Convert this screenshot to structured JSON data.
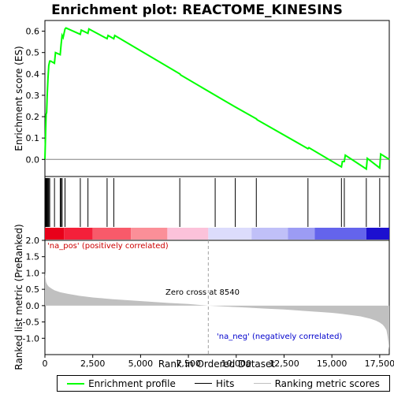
{
  "chart_data": {
    "type": "line",
    "title": "Enrichment plot: REACTOME_KINESINS",
    "xlabel": "Rank in Ordered Dataset",
    "ylabel_top": "Enrichment score (ES)",
    "ylabel_bottom": "Ranked list metric (PreRanked)",
    "x_range": [
      0,
      18000
    ],
    "x_ticks": [
      0,
      2500,
      5000,
      7500,
      10000,
      12500,
      15000,
      17500
    ],
    "x_tick_labels": [
      "0",
      "2,500",
      "5,000",
      "7,500",
      "10,000",
      "12,500",
      "15,000",
      "17,500"
    ],
    "es_ylim": [
      -0.08,
      0.65
    ],
    "es_ticks": [
      0.0,
      0.1,
      0.2,
      0.3,
      0.4,
      0.5,
      0.6
    ],
    "es_tick_labels": [
      "0.0",
      "0.1",
      "0.2",
      "0.3",
      "0.4",
      "0.5",
      "0.6"
    ],
    "metric_ylim": [
      -1.5,
      2.0
    ],
    "metric_ticks": [
      2.0,
      1.5,
      1.0,
      0.5,
      0.0,
      -0.5,
      -1.0
    ],
    "metric_tick_labels": [
      "2.0",
      "1.5",
      "1.0",
      "0.5",
      "0.0",
      "-0.5",
      "-1.0"
    ],
    "enrichment_profile": {
      "name": "Enrichment profile",
      "color": "#00ff00",
      "x": [
        0,
        30,
        60,
        90,
        120,
        160,
        200,
        250,
        300,
        500,
        550,
        800,
        850,
        900,
        950,
        1050,
        1100,
        1850,
        1900,
        2250,
        2300,
        3250,
        3300,
        3600,
        3650,
        7050,
        7100,
        8900,
        9950,
        11050,
        11100,
        13750,
        13800,
        15500,
        15550,
        15650,
        15700,
        16800,
        16850,
        17500,
        17550,
        18000
      ],
      "y": [
        0.0,
        0.1,
        0.21,
        0.22,
        0.3,
        0.38,
        0.44,
        0.46,
        0.46,
        0.45,
        0.5,
        0.49,
        0.54,
        0.58,
        0.57,
        0.61,
        0.615,
        0.585,
        0.605,
        0.59,
        0.61,
        0.565,
        0.58,
        0.565,
        0.58,
        0.4,
        0.395,
        0.3,
        0.245,
        0.19,
        0.185,
        0.05,
        0.055,
        -0.035,
        -0.01,
        -0.01,
        0.02,
        -0.045,
        0.005,
        -0.04,
        0.025,
        0.0
      ]
    },
    "hits": {
      "name": "Hits",
      "x": [
        30,
        60,
        90,
        120,
        160,
        200,
        250,
        500,
        800,
        850,
        900,
        1050,
        1850,
        2250,
        3250,
        3600,
        7050,
        8900,
        9950,
        11050,
        13750,
        15500,
        15650,
        16800,
        17500
      ]
    },
    "ranking_metric": {
      "name": "Ranking metric scores",
      "color": "#c0c0c0",
      "x": [
        0,
        20,
        60,
        120,
        200,
        350,
        500,
        800,
        1200,
        1800,
        2500,
        3500,
        4500,
        5500,
        6500,
        7500,
        8540,
        9500,
        10500,
        11500,
        12500,
        13500,
        14500,
        15000,
        15500,
        16000,
        16500,
        17000,
        17300,
        17500,
        17650,
        17750,
        17850,
        17900,
        17950,
        18000
      ],
      "y": [
        1.05,
        0.9,
        0.72,
        0.64,
        0.58,
        0.52,
        0.47,
        0.41,
        0.36,
        0.3,
        0.25,
        0.2,
        0.16,
        0.12,
        0.08,
        0.05,
        0.0,
        -0.03,
        -0.06,
        -0.09,
        -0.12,
        -0.16,
        -0.2,
        -0.22,
        -0.25,
        -0.29,
        -0.33,
        -0.4,
        -0.46,
        -0.52,
        -0.58,
        -0.65,
        -0.75,
        -0.9,
        -1.1,
        -1.35
      ]
    },
    "zero_cross_x": 8540,
    "zero_cross_label": "Zero cross at 8540",
    "pos_label": "'na_pos' (positively correlated)",
    "neg_label": "'na_neg' (negatively correlated)",
    "pos_label_color": "#cc0000",
    "neg_label_color": "#0000cc",
    "colorbar_segments": [
      {
        "from": 0,
        "to": 1000,
        "color": "#e8001a"
      },
      {
        "from": 1000,
        "to": 2500,
        "color": "#f4203a"
      },
      {
        "from": 2500,
        "to": 4500,
        "color": "#f85a6a"
      },
      {
        "from": 4500,
        "to": 6400,
        "color": "#fb8f98"
      },
      {
        "from": 6400,
        "to": 8540,
        "color": "#fcc2da"
      },
      {
        "from": 8540,
        "to": 10800,
        "color": "#dcdcfc"
      },
      {
        "from": 10800,
        "to": 12700,
        "color": "#c0c0f8"
      },
      {
        "from": 12700,
        "to": 14100,
        "color": "#9c9cf4"
      },
      {
        "from": 14100,
        "to": 16800,
        "color": "#6464ec"
      },
      {
        "from": 16800,
        "to": 18000,
        "color": "#1c10d0"
      }
    ],
    "legend": [
      "Enrichment profile",
      "Hits",
      "Ranking metric scores"
    ]
  }
}
